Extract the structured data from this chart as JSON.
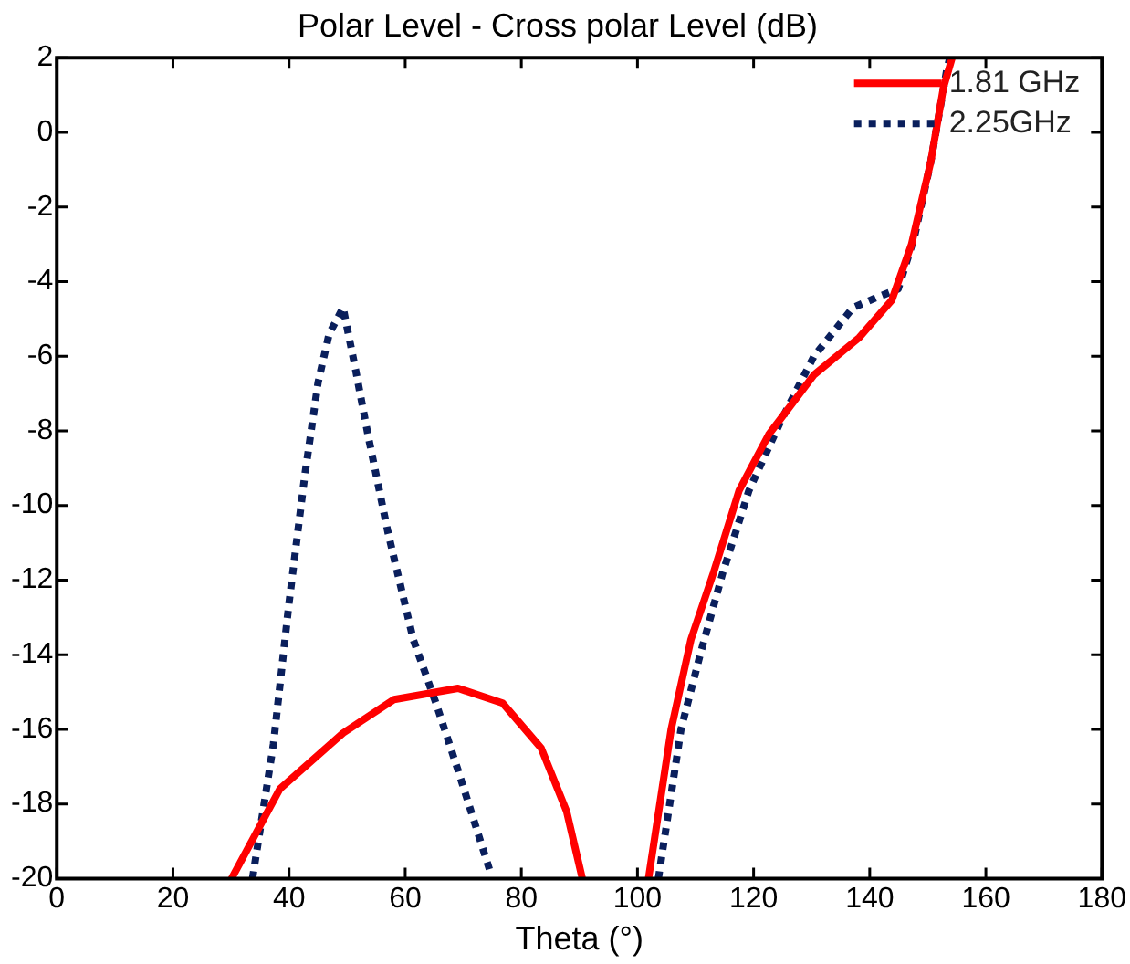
{
  "chart_data": {
    "type": "line",
    "title": "Polar Level - Cross polar Level (dB)",
    "xlabel": "Theta (°)",
    "xlim": [
      0,
      180
    ],
    "xticks": [
      0,
      20,
      40,
      60,
      80,
      100,
      120,
      140,
      160,
      180
    ],
    "ylim": [
      -20,
      2
    ],
    "yticks": [
      -20,
      -18,
      -16,
      -14,
      -12,
      -10,
      -8,
      -6,
      -4,
      -2,
      0,
      2
    ],
    "grid": false,
    "legend": "top right",
    "marker": "none",
    "series": [
      {
        "name": "1.81 GHz",
        "color": "#ff0000",
        "line_style": "solid",
        "x": [
          30.1,
          38.4,
          49.3,
          58.1,
          69.1,
          76.8,
          83.4,
          87.8,
          90.5,
          96,
          101.9,
          105.8,
          109.2,
          113.1,
          117.5,
          122.6,
          130.4,
          138.2,
          143.8,
          147.2,
          150.5,
          152.7,
          154.2
        ],
        "values": [
          -20,
          -17.6,
          -16.1,
          -15.2,
          -14.9,
          -15.3,
          -16.5,
          -18.2,
          -20,
          null,
          -20,
          -16,
          -13.6,
          -11.8,
          -9.6,
          -8.1,
          -6.5,
          -5.5,
          -4.5,
          -3.0,
          -0.8,
          1.2,
          2
        ]
      },
      {
        "name": "2.25GHz",
        "color": "#0a1f5c",
        "line_style": "dotted",
        "x": [
          33.7,
          37.3,
          40,
          42.7,
          45,
          46.9,
          49.3,
          51.5,
          53.7,
          57,
          61.4,
          65.3,
          69.1,
          74.8,
          90,
          103.6,
          107.5,
          110.8,
          114.7,
          119.2,
          124.8,
          130.4,
          137.1,
          141.6,
          144.9,
          147.7,
          150.5,
          153.3,
          153.8
        ],
        "values": [
          -20,
          -16.4,
          -12.6,
          -9.2,
          -6.7,
          -5.4,
          -4.7,
          -6.4,
          -8.2,
          -10.7,
          -13.6,
          -15.3,
          -17.1,
          -19.9,
          null,
          -20,
          -16,
          -14,
          -11.8,
          -9.6,
          -7.7,
          -6.0,
          -4.7,
          -4.4,
          -4.2,
          -2.8,
          -0.8,
          1.7,
          2
        ]
      }
    ]
  }
}
